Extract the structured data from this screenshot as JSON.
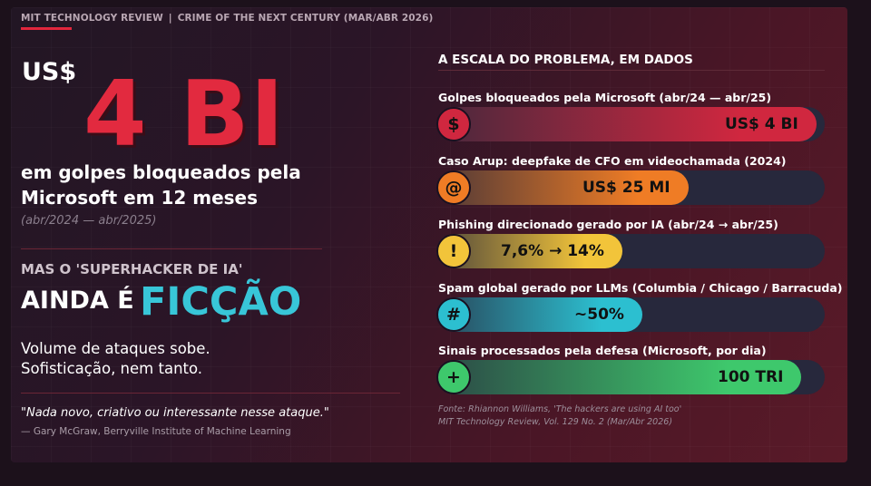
{
  "header": {
    "publication": "MIT TECHNOLOGY REVIEW",
    "separator": "|",
    "section": "CRIME OF THE NEXT CENTURY (MAR/ABR 2026)"
  },
  "hero": {
    "currency": "US$",
    "figure": "4 BI",
    "subtitle": "em golpes bloqueados pela Microsoft em 12 meses",
    "period": "(abr/2024 — abr/2025)"
  },
  "myth": {
    "kicker": "MAS O 'SUPERHACKER DE IA'",
    "line_a": "AINDA É",
    "line_b": "FICÇÃO",
    "body_1": "Volume de ataques sobe.",
    "body_2": "Sofisticação, nem tanto."
  },
  "quote": {
    "text": "\"Nada novo, criativo ou interessante nesse ataque.\"",
    "author": "— Gary McGraw, Berryville Institute of Machine Learning"
  },
  "panel": {
    "title": "A ESCALA DO PROBLEMA, EM DADOS",
    "rows": [
      {
        "label": "Golpes bloqueados pela Microsoft (abr/24 — abr/25)",
        "icon": "dollar-icon",
        "glyph": "$",
        "value": "US$ 4 BI",
        "fill": 0.98,
        "color": "#d0273f"
      },
      {
        "label": "Caso Arup: deepfake de CFO em videochamada (2024)",
        "icon": "at-icon",
        "glyph": "@",
        "value": "US$ 25 MI",
        "fill": 0.65,
        "color": "#ef7c25"
      },
      {
        "label": "Phishing direcionado gerado por IA (abr/24 → abr/25)",
        "icon": "exclamation-icon",
        "glyph": "!",
        "value": "7,6% → 14%",
        "fill": 0.48,
        "color": "#f2c43a"
      },
      {
        "label": "Spam global gerado por LLMs (Columbia / Chicago / Barracuda)",
        "icon": "hash-icon",
        "glyph": "#",
        "value": "~50%",
        "fill": 0.53,
        "color": "#2cbfd0"
      },
      {
        "label": "Sinais processados pela defesa (Microsoft, por dia)",
        "icon": "plus-icon",
        "glyph": "+",
        "value": "100 TRI",
        "fill": 0.94,
        "color": "#3ec86c"
      }
    ]
  },
  "source": {
    "line_1": "Fonte: Rhiannon Williams, 'The hackers are using AI too'",
    "line_2": "MIT Technology Review, Vol. 129 No. 2 (Mar/Abr 2026)"
  }
}
